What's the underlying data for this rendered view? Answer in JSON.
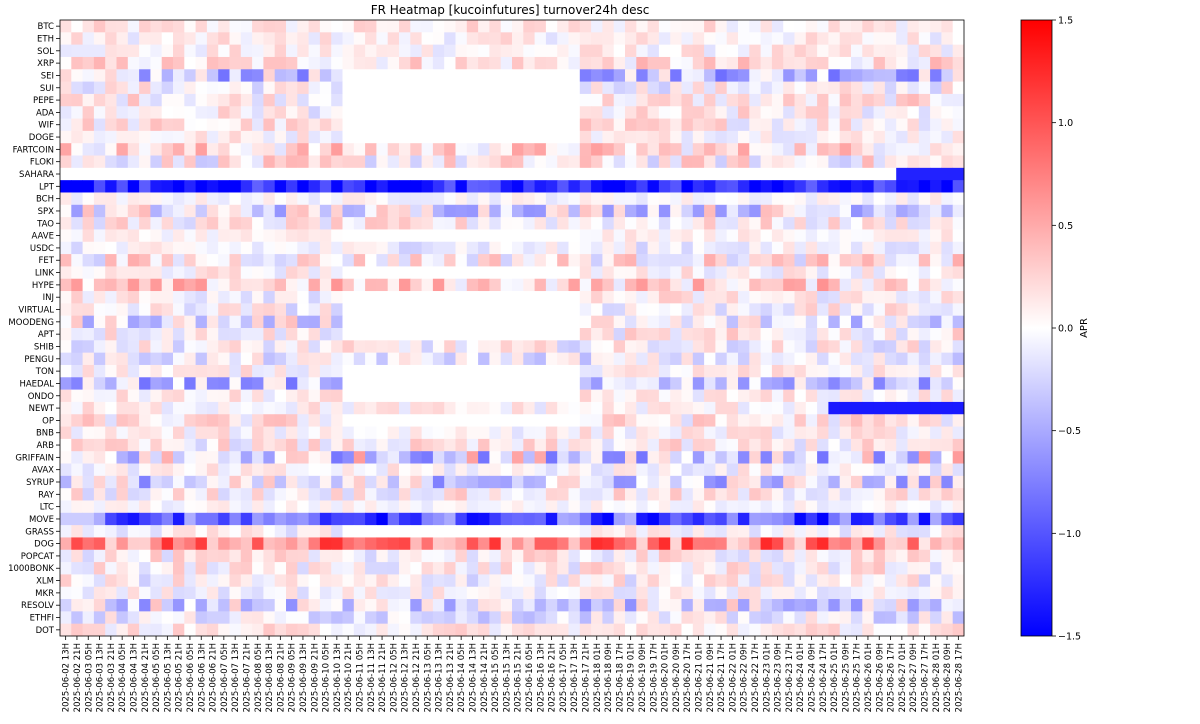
{
  "chart_data": {
    "type": "heatmap",
    "title": "FR Heatmap [kucoinfutures] turnover24h desc",
    "xlabel": "",
    "ylabel": "",
    "colorbar_label": "APR",
    "colormap": "bwr",
    "vmin": -1.5,
    "vmax": 1.5,
    "colorbar_ticks": [
      "−1.5",
      "−1.0",
      "−0.5",
      "0.0",
      "0.5",
      "1.0",
      "1.5"
    ],
    "colorbar_tick_values": [
      -1.5,
      -1.0,
      -0.5,
      0.0,
      0.5,
      1.0,
      1.5
    ],
    "x_tick_labels": [
      "2025-06-02 13H",
      "2025-06-02 21H",
      "2025-06-03 05H",
      "2025-06-03 13H",
      "2025-06-03 21H",
      "2025-06-04 05H",
      "2025-06-04 13H",
      "2025-06-04 21H",
      "2025-06-05 05H",
      "2025-06-05 13H",
      "2025-06-05 21H",
      "2025-06-06 05H",
      "2025-06-06 13H",
      "2025-06-06 21H",
      "2025-06-07 05H",
      "2025-06-07 13H",
      "2025-06-07 21H",
      "2025-06-08 05H",
      "2025-06-08 13H",
      "2025-06-08 21H",
      "2025-06-09 05H",
      "2025-06-09 13H",
      "2025-06-09 21H",
      "2025-06-10 05H",
      "2025-06-10 13H",
      "2025-06-10 21H",
      "2025-06-11 05H",
      "2025-06-11 13H",
      "2025-06-11 21H",
      "2025-06-12 05H",
      "2025-06-12 13H",
      "2025-06-12 21H",
      "2025-06-13 05H",
      "2025-06-13 13H",
      "2025-06-13 21H",
      "2025-06-14 05H",
      "2025-06-14 13H",
      "2025-06-14 21H",
      "2025-06-15 05H",
      "2025-06-15 13H",
      "2025-06-15 21H",
      "2025-06-16 05H",
      "2025-06-16 13H",
      "2025-06-16 21H",
      "2025-06-17 05H",
      "2025-06-17 13H",
      "2025-06-17 21H",
      "2025-06-18 01H",
      "2025-06-18 09H",
      "2025-06-18 17H",
      "2025-06-19 01H",
      "2025-06-19 09H",
      "2025-06-19 17H",
      "2025-06-20 01H",
      "2025-06-20 09H",
      "2025-06-20 17H",
      "2025-06-21 01H",
      "2025-06-21 09H",
      "2025-06-21 17H",
      "2025-06-22 01H",
      "2025-06-22 09H",
      "2025-06-22 17H",
      "2025-06-23 01H",
      "2025-06-23 09H",
      "2025-06-23 17H",
      "2025-06-24 01H",
      "2025-06-24 09H",
      "2025-06-24 17H",
      "2025-06-25 01H",
      "2025-06-25 09H",
      "2025-06-25 17H",
      "2025-06-26 01H",
      "2025-06-26 09H",
      "2025-06-26 17H",
      "2025-06-27 01H",
      "2025-06-27 09H",
      "2025-06-27 17H",
      "2025-06-28 01H",
      "2025-06-28 09H",
      "2025-06-28 17H"
    ],
    "y_labels": [
      "BTC",
      "ETH",
      "SOL",
      "XRP",
      "SEI",
      "SUI",
      "PEPE",
      "ADA",
      "WIF",
      "DOGE",
      "FARTCOIN",
      "FLOKI",
      "SAHARA",
      "LPT",
      "BCH",
      "SPX",
      "TAO",
      "AAVE",
      "USDC",
      "FET",
      "LINK",
      "HYPE",
      "INJ",
      "VIRTUAL",
      "MOODENG",
      "APT",
      "SHIB",
      "PENGU",
      "TON",
      "HAEDAL",
      "ONDO",
      "NEWT",
      "OP",
      "BNB",
      "ARB",
      "GRIFFAIN",
      "AVAX",
      "SYRUP",
      "RAY",
      "LTC",
      "MOVE",
      "GRASS",
      "DOG",
      "POPCAT",
      "1000BONK",
      "XLM",
      "MKR",
      "RESOLV",
      "ETHFI",
      "DOT"
    ],
    "columns_per_tick": 1,
    "row_profiles": {
      "BTC": [
        0.1,
        0.15
      ],
      "ETH": [
        0.05,
        0.15
      ],
      "SOL": [
        0.05,
        0.15
      ],
      "XRP": [
        0.15,
        0.2
      ],
      "SEI": [
        -0.3,
        0.35
      ],
      "SUI": [
        0.0,
        0.2
      ],
      "PEPE": [
        0.1,
        0.2
      ],
      "ADA": [
        0.05,
        0.2
      ],
      "WIF": [
        0.1,
        0.2
      ],
      "DOGE": [
        0.05,
        0.15
      ],
      "FARTCOIN": [
        0.2,
        0.25
      ],
      "FLOKI": [
        0.05,
        0.25
      ],
      "SAHARA": [
        0.0,
        0.0
      ],
      "LPT": [
        -1.3,
        0.25
      ],
      "BCH": [
        0.0,
        0.1
      ],
      "SPX": [
        -0.1,
        0.35
      ],
      "TAO": [
        0.05,
        0.2
      ],
      "AAVE": [
        0.05,
        0.1
      ],
      "USDC": [
        -0.05,
        0.15
      ],
      "FET": [
        0.1,
        0.25
      ],
      "LINK": [
        0.05,
        0.15
      ],
      "HYPE": [
        0.25,
        0.25
      ],
      "INJ": [
        0.05,
        0.2
      ],
      "VIRTUAL": [
        0.0,
        0.2
      ],
      "MOODENG": [
        -0.1,
        0.3
      ],
      "APT": [
        0.05,
        0.2
      ],
      "SHIB": [
        0.0,
        0.2
      ],
      "PENGU": [
        -0.1,
        0.2
      ],
      "TON": [
        0.05,
        0.15
      ],
      "HAEDAL": [
        -0.35,
        0.3
      ],
      "ONDO": [
        0.05,
        0.15
      ],
      "NEWT": [
        0.05,
        0.15
      ],
      "OP": [
        0.1,
        0.2
      ],
      "BNB": [
        0.05,
        0.15
      ],
      "ARB": [
        0.05,
        0.2
      ],
      "GRIFFAIN": [
        -0.1,
        0.45
      ],
      "AVAX": [
        0.0,
        0.15
      ],
      "SYRUP": [
        -0.2,
        0.35
      ],
      "RAY": [
        0.05,
        0.2
      ],
      "LTC": [
        0.0,
        0.1
      ],
      "MOVE": [
        -1.0,
        0.35
      ],
      "GRASS": [
        0.0,
        0.15
      ],
      "DOG": [
        0.7,
        0.35
      ],
      "POPCAT": [
        0.05,
        0.2
      ],
      "1000BONK": [
        0.05,
        0.2
      ],
      "XLM": [
        0.0,
        0.2
      ],
      "MKR": [
        0.0,
        0.15
      ],
      "RESOLV": [
        -0.15,
        0.35
      ],
      "ETHFI": [
        -0.1,
        0.2
      ],
      "DOT": [
        0.1,
        0.15
      ]
    },
    "gap_rows": [
      "SEI",
      "SUI",
      "PEPE",
      "ADA",
      "WIF",
      "DOGE",
      "AAVE",
      "INJ",
      "MOODENG",
      "TON",
      "HAEDAL",
      "ONDO",
      "OP",
      "GRASS",
      "VIRTUAL",
      "LINK",
      "APT"
    ],
    "gap_columns": [
      25,
      46
    ],
    "partial_rows": {
      "SAHARA": {
        "start": 74,
        "values_note": "strong negative"
      },
      "NEWT": {
        "start": 68,
        "values_note": "strong negative"
      }
    }
  }
}
